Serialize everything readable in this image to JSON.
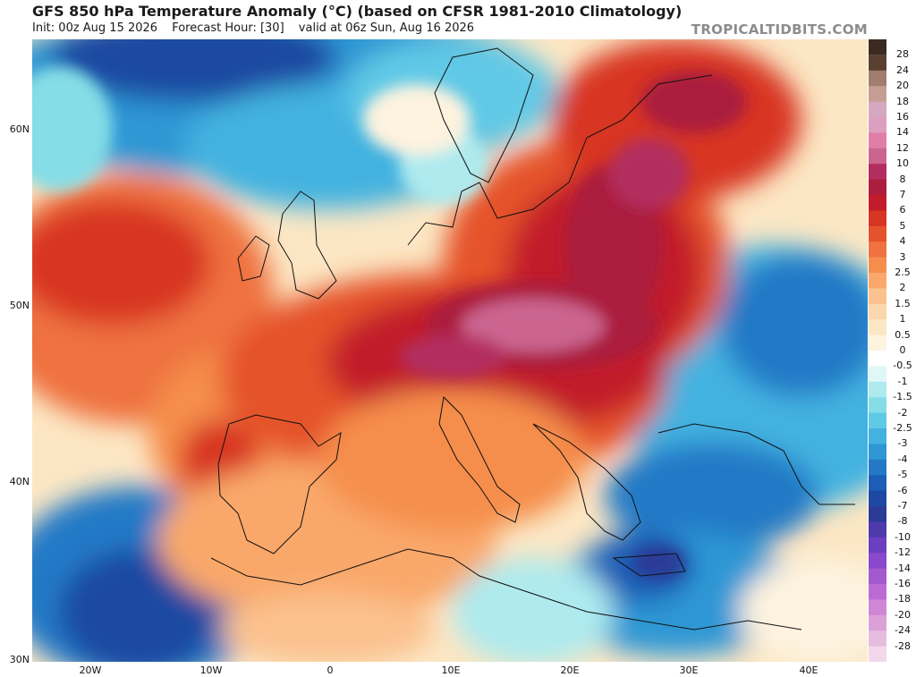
{
  "header": {
    "title": "GFS 850 hPa Temperature Anomaly (°C) (based on CFSR 1981-2010 Climatology)",
    "init": "Init: 00z Aug 15 2026",
    "forecast_hour": "Forecast Hour: [30]",
    "valid": "valid at 06z Sun, Aug 16 2026",
    "brand": "TROPICALTIDBITS.COM"
  },
  "map": {
    "lat_labels": [
      "60N",
      "50N",
      "40N",
      "30N"
    ],
    "lon_labels": [
      "20W",
      "10W",
      "0",
      "10E",
      "20E",
      "30E",
      "40E"
    ]
  },
  "colorbar": {
    "labels": [
      "28",
      "24",
      "20",
      "18",
      "16",
      "14",
      "12",
      "10",
      "8",
      "7",
      "6",
      "5",
      "4",
      "3",
      "2.5",
      "2",
      "1.5",
      "1",
      "0.5",
      "0",
      "-0.5",
      "-1",
      "-1.5",
      "-2",
      "-2.5",
      "-3",
      "-4",
      "-5",
      "-6",
      "-7",
      "-8",
      "-10",
      "-12",
      "-14",
      "-16",
      "-18",
      "-20",
      "-24",
      "-28"
    ],
    "colors": [
      "#5a4030",
      "#a07d6c",
      "#c69c93",
      "#d4a8c0",
      "#dc9fc0",
      "#e07ea8",
      "#cb6590",
      "#b32e5e",
      "#ab1e3e",
      "#c21c2c",
      "#d83424",
      "#e5532c",
      "#ef7240",
      "#f58e4c",
      "#f9a86a",
      "#fbc18e",
      "#fcd6ac",
      "#fce7c4",
      "#fdf3df",
      "#ffffff",
      "#dff7f7",
      "#aeeaee",
      "#85dde6",
      "#60c9e6",
      "#43b2e0",
      "#2f97d4",
      "#2479c6",
      "#1c5eb6",
      "#1d49a2",
      "#2c3b96",
      "#4f3aab",
      "#6b3fbf",
      "#8a48cc",
      "#a559cf",
      "#bd6bd4",
      "#cf86d4",
      "#dba0d8",
      "#e6bcdf",
      "#f2d8ea"
    ]
  }
}
